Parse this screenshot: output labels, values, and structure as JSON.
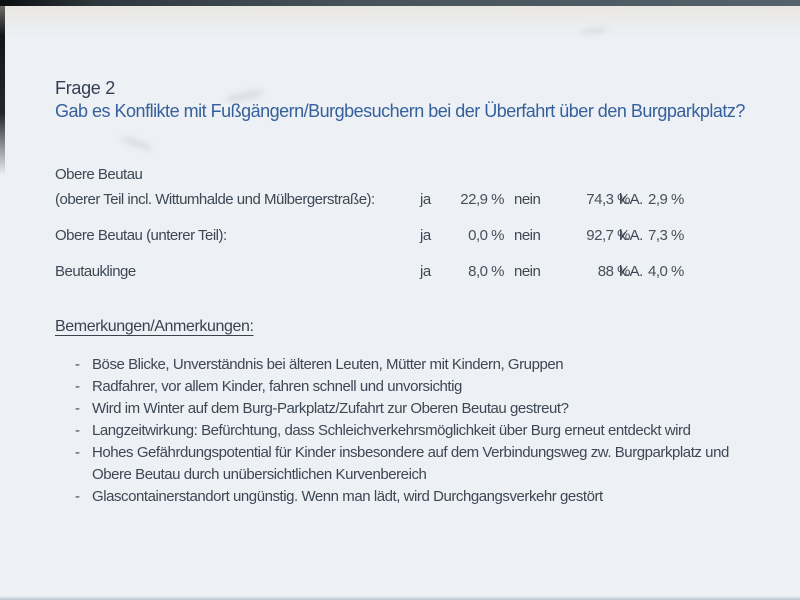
{
  "header": {
    "number": "Frage 2",
    "question": "Gab es Konflikte mit Fußgängern/Burgbesuchern bei der Überfahrt über den Burgparkplatz?"
  },
  "results": {
    "col_ja": "ja",
    "col_nein": "nein",
    "col_ka": "k.A.",
    "rows": [
      {
        "label": "Obere Beutau",
        "label2": "(oberer Teil incl. Wittumhalde und Mülbergerstraße):",
        "ja": "22,9 %",
        "nein": "74,3 %",
        "ka": "2,9 %"
      },
      {
        "label": "Obere Beutau (unterer Teil):",
        "label2": "",
        "ja": "0,0 %",
        "nein": "92,7 %",
        "ka": "7,3 %"
      },
      {
        "label": "Beutauklinge",
        "label2": "",
        "ja": "8,0 %",
        "nein": "88 %",
        "ka": "4,0 %"
      }
    ]
  },
  "remarks": {
    "heading": "Bemerkungen/Anmerkungen:",
    "bullet": "-",
    "items": [
      "Böse Blicke, Unverständnis bei älteren Leuten, Mütter mit Kindern, Gruppen",
      "Radfahrer, vor allem Kinder, fahren schnell und unvorsichtig",
      "Wird im Winter auf dem Burg-Parkplatz/Zufahrt zur Oberen Beutau gestreut?",
      "Langzeitwirkung: Befürchtung, dass Schleichverkehrsmöglichkeit über Burg erneut entdeckt wird",
      "Hohes Gefährdungspotential für Kinder insbesondere auf dem Verbindungsweg zw. Burgparkplatz und Obere Beutau durch unübersichtlichen Kurvenbereich",
      "Glascontainerstandort ungünstig. Wenn man lädt, wird Durchgangsverkehr gestört"
    ]
  },
  "colors": {
    "question_blue": "#35609d",
    "body_text": "#3d4854",
    "page_bg": "#edf0f4"
  }
}
